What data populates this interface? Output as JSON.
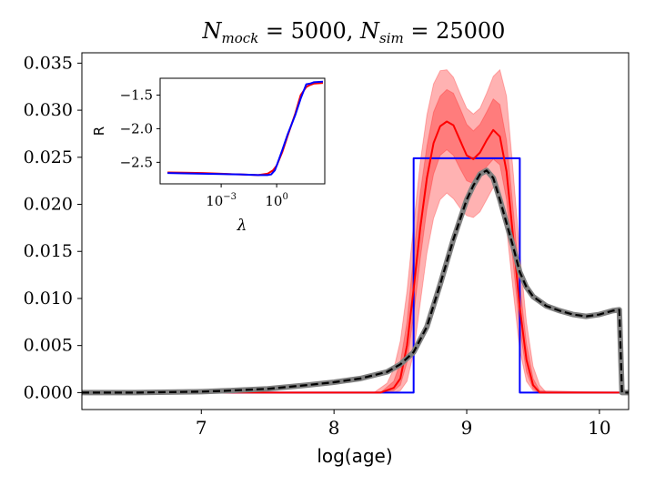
{
  "chart_data": [
    {
      "panel": "main",
      "type": "line",
      "title": "N_mock = 5000, N_sim = 25000",
      "title_parts": {
        "n1": "N",
        "s1": "mock",
        "eq1": " = 5000, ",
        "n2": "N",
        "s2": "sim",
        "eq2": " = 25000"
      },
      "xlabel": "log(age)",
      "ylabel": "",
      "xlim": [
        6.1,
        10.22
      ],
      "ylim": [
        -0.0018,
        0.0361
      ],
      "xticks": [
        7,
        8,
        9,
        10
      ],
      "xtick_labels": [
        "7",
        "8",
        "9",
        "10"
      ],
      "yticks": [
        0.0,
        0.005,
        0.01,
        0.015,
        0.02,
        0.025,
        0.03,
        0.035
      ],
      "ytick_labels": [
        "0.000",
        "0.005",
        "0.010",
        "0.015",
        "0.020",
        "0.025",
        "0.030",
        "0.035"
      ],
      "grid": false,
      "series": [
        {
          "role": "true-distribution",
          "color": "#0000ff",
          "style": "solid",
          "x": [
            6.1,
            8.6,
            8.6,
            9.4,
            9.4,
            10.22
          ],
          "y": [
            0.0,
            0.0,
            0.0249,
            0.0249,
            0.0,
            0.0
          ]
        },
        {
          "role": "reconstruction-median",
          "color": "#ff0000",
          "style": "solid",
          "x": [
            6.1,
            8.35,
            8.45,
            8.5,
            8.55,
            8.6,
            8.65,
            8.7,
            8.75,
            8.8,
            8.85,
            8.9,
            8.95,
            9.0,
            9.05,
            9.1,
            9.15,
            9.2,
            9.25,
            9.3,
            9.35,
            9.4,
            9.45,
            9.5,
            9.55,
            10.22
          ],
          "y": [
            0.0,
            0.0,
            0.0005,
            0.0015,
            0.005,
            0.011,
            0.0175,
            0.0228,
            0.0265,
            0.0283,
            0.0288,
            0.0284,
            0.0268,
            0.0252,
            0.0248,
            0.0255,
            0.0268,
            0.0279,
            0.0272,
            0.0235,
            0.0165,
            0.009,
            0.0035,
            0.0008,
            0.0,
            0.0
          ]
        },
        {
          "role": "reconstruction-inner-band",
          "color": "#ff0000",
          "style": "band",
          "opacity": 0.3,
          "x": [
            6.1,
            8.35,
            8.45,
            8.5,
            8.55,
            8.6,
            8.65,
            8.7,
            8.75,
            8.8,
            8.85,
            8.9,
            8.95,
            9.0,
            9.05,
            9.1,
            9.15,
            9.2,
            9.25,
            9.3,
            9.35,
            9.4,
            9.45,
            9.5,
            9.55,
            10.22
          ],
          "y_low": [
            0.0,
            0.0,
            0.0002,
            0.0008,
            0.0032,
            0.0082,
            0.0142,
            0.0195,
            0.0232,
            0.0252,
            0.0258,
            0.0252,
            0.0238,
            0.0225,
            0.0222,
            0.0228,
            0.024,
            0.0248,
            0.0242,
            0.0205,
            0.0138,
            0.0068,
            0.0022,
            0.0004,
            0.0,
            0.0
          ],
          "y_high": [
            0.0,
            0.0,
            0.0012,
            0.0032,
            0.0075,
            0.0145,
            0.0212,
            0.0262,
            0.0298,
            0.0315,
            0.0322,
            0.0318,
            0.0302,
            0.0285,
            0.0278,
            0.0285,
            0.0298,
            0.0312,
            0.0306,
            0.0268,
            0.0195,
            0.0115,
            0.0052,
            0.0015,
            0.0002,
            0.0
          ]
        },
        {
          "role": "reconstruction-outer-band",
          "color": "#ff0000",
          "style": "band",
          "opacity": 0.3,
          "x": [
            6.1,
            8.3,
            8.4,
            8.45,
            8.5,
            8.55,
            8.6,
            8.65,
            8.7,
            8.75,
            8.8,
            8.85,
            8.9,
            8.95,
            9.0,
            9.05,
            9.1,
            9.15,
            9.2,
            9.25,
            9.3,
            9.35,
            9.4,
            9.45,
            9.5,
            9.55,
            9.6,
            10.22
          ],
          "y_low": [
            0.0,
            0.0,
            0.0,
            0.0,
            0.0002,
            0.0012,
            0.0042,
            0.0095,
            0.0148,
            0.0185,
            0.0205,
            0.0212,
            0.0206,
            0.0196,
            0.0188,
            0.0186,
            0.0192,
            0.0205,
            0.0218,
            0.0212,
            0.0175,
            0.0108,
            0.0045,
            0.0012,
            0.0002,
            0.0,
            0.0,
            0.0
          ],
          "y_high": [
            0.0,
            0.0,
            0.001,
            0.0025,
            0.0055,
            0.0108,
            0.0178,
            0.0245,
            0.0295,
            0.0328,
            0.0342,
            0.0343,
            0.0335,
            0.0318,
            0.0302,
            0.0296,
            0.0302,
            0.0318,
            0.0336,
            0.0343,
            0.0315,
            0.0235,
            0.0148,
            0.0075,
            0.0028,
            0.0008,
            0.0,
            0.0
          ]
        },
        {
          "role": "cumulative-grey",
          "color": "#808080",
          "style": "thick-solid",
          "x": [
            6.1,
            6.5,
            7.0,
            7.2,
            7.5,
            7.8,
            8.0,
            8.2,
            8.4,
            8.5,
            8.6,
            8.7,
            8.8,
            8.9,
            9.0,
            9.05,
            9.1,
            9.15,
            9.2,
            9.25,
            9.3,
            9.35,
            9.4,
            9.45,
            9.5,
            9.6,
            9.7,
            9.8,
            9.9,
            10.0,
            10.1,
            10.15,
            10.17,
            10.22
          ],
          "y": [
            0.0,
            0.0,
            0.0001,
            0.0002,
            0.0004,
            0.0008,
            0.0011,
            0.0015,
            0.0022,
            0.003,
            0.0043,
            0.007,
            0.0115,
            0.0163,
            0.0205,
            0.022,
            0.0232,
            0.0236,
            0.0228,
            0.0205,
            0.018,
            0.0155,
            0.0128,
            0.0112,
            0.0102,
            0.0092,
            0.0087,
            0.0083,
            0.0081,
            0.0083,
            0.0087,
            0.0088,
            0.0,
            0.0
          ]
        },
        {
          "role": "cumulative-black-dashed",
          "color": "#000000",
          "style": "dashed",
          "x": [
            6.1,
            6.5,
            7.0,
            7.2,
            7.5,
            7.8,
            8.0,
            8.2,
            8.4,
            8.5,
            8.6,
            8.7,
            8.8,
            8.9,
            9.0,
            9.05,
            9.1,
            9.15,
            9.2,
            9.25,
            9.3,
            9.35,
            9.4,
            9.45,
            9.5,
            9.6,
            9.7,
            9.8,
            9.9,
            10.0,
            10.1,
            10.15,
            10.17,
            10.22
          ],
          "y": [
            0.0,
            0.0,
            0.0001,
            0.0002,
            0.0004,
            0.0008,
            0.0011,
            0.0015,
            0.0022,
            0.003,
            0.0043,
            0.007,
            0.0115,
            0.0163,
            0.0205,
            0.022,
            0.0232,
            0.0236,
            0.0228,
            0.0205,
            0.018,
            0.0155,
            0.0128,
            0.0112,
            0.0102,
            0.0092,
            0.0087,
            0.0083,
            0.0081,
            0.0083,
            0.0087,
            0.0088,
            0.0,
            0.0
          ]
        }
      ]
    },
    {
      "panel": "inset",
      "type": "line",
      "xscale": "log",
      "xlabel": "λ",
      "ylabel": "R",
      "xlim_log10": [
        -6.3,
        2.6
      ],
      "ylim": [
        -2.82,
        -1.25
      ],
      "xticks_log10": [
        -3,
        0
      ],
      "xtick_labels": [
        {
          "base": "10",
          "exp": "−3"
        },
        {
          "base": "10",
          "exp": "0"
        }
      ],
      "yticks": [
        -1.5,
        -2.0,
        -2.5
      ],
      "ytick_labels": [
        "−1.5",
        "−2.0",
        "−2.5"
      ],
      "grid": false,
      "series": [
        {
          "role": "R-red",
          "color": "#ff0000",
          "x_log10": [
            -5.9,
            -5.0,
            -4.0,
            -3.0,
            -2.0,
            -1.0,
            -0.5,
            -0.2,
            0.0,
            0.3,
            0.6,
            1.0,
            1.3,
            1.6,
            1.8,
            2.0,
            2.5
          ],
          "y": [
            -2.65,
            -2.655,
            -2.66,
            -2.67,
            -2.68,
            -2.69,
            -2.67,
            -2.62,
            -2.55,
            -2.35,
            -2.1,
            -1.78,
            -1.5,
            -1.38,
            -1.35,
            -1.33,
            -1.32
          ]
        },
        {
          "role": "R-blue",
          "color": "#0000ff",
          "x_log10": [
            -5.9,
            -5.0,
            -4.0,
            -3.0,
            -2.0,
            -1.0,
            -0.5,
            -0.3,
            -0.1,
            0.0,
            0.3,
            0.6,
            1.0,
            1.3,
            1.6,
            1.8,
            2.0,
            2.5
          ],
          "y": [
            -2.66,
            -2.665,
            -2.67,
            -2.675,
            -2.68,
            -2.69,
            -2.69,
            -2.68,
            -2.62,
            -2.55,
            -2.32,
            -2.08,
            -1.8,
            -1.55,
            -1.34,
            -1.33,
            -1.31,
            -1.3
          ]
        }
      ]
    }
  ]
}
